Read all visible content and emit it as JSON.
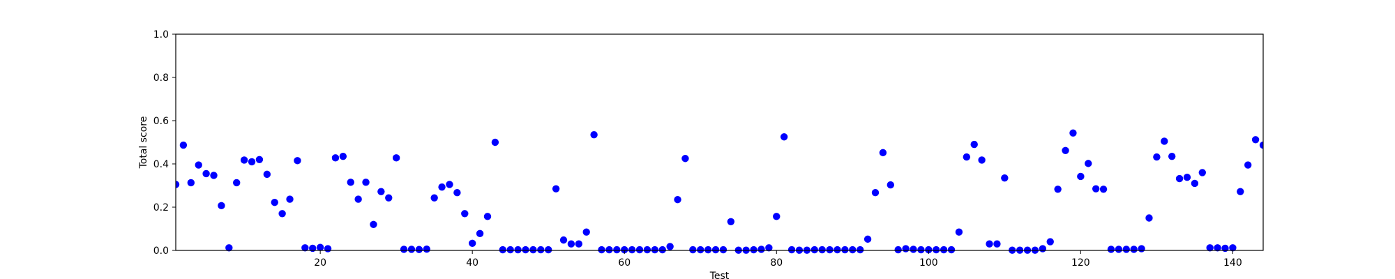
{
  "chart_data": {
    "type": "scatter",
    "title": "",
    "xlabel": "Test",
    "ylabel": "Total score",
    "xlim": [
      1,
      144
    ],
    "ylim": [
      0.0,
      1.0
    ],
    "grid": false,
    "legend": "none",
    "marker_color": "#0000ff",
    "x_ticks": [
      20,
      40,
      60,
      80,
      100,
      120,
      140
    ],
    "x_tick_labels": [
      "20",
      "40",
      "60",
      "80",
      "100",
      "120",
      "140"
    ],
    "y_ticks": [
      0.0,
      0.2,
      0.4,
      0.6,
      0.8,
      1.0
    ],
    "y_tick_labels": [
      "0.0",
      "0.2",
      "0.4",
      "0.6",
      "0.8",
      "1.0"
    ],
    "series": [
      {
        "x": [
          1,
          2,
          3,
          4,
          5,
          6,
          7,
          8,
          9,
          10,
          11,
          12,
          13,
          14,
          15,
          16,
          17,
          18,
          19,
          20,
          21,
          22,
          23,
          24,
          25,
          26,
          27,
          28,
          29,
          30,
          31,
          32,
          33,
          34,
          35,
          36,
          37,
          38,
          39,
          40,
          41,
          42,
          43,
          44,
          45,
          46,
          47,
          48,
          49,
          50,
          51,
          52,
          53,
          54,
          55,
          56,
          57,
          58,
          59,
          60,
          61,
          62,
          63,
          64,
          65,
          66,
          67,
          68,
          69,
          70,
          71,
          72,
          73,
          74,
          75,
          76,
          77,
          78,
          79,
          80,
          81,
          82,
          83,
          84,
          85,
          86,
          87,
          88,
          89,
          90,
          91,
          92,
          93,
          94,
          95,
          96,
          97,
          98,
          99,
          100,
          101,
          102,
          103,
          104,
          105,
          106,
          107,
          108,
          109,
          110,
          111,
          112,
          113,
          114,
          115,
          116,
          117,
          118,
          119,
          120,
          121,
          122,
          123,
          124,
          125,
          126,
          127,
          128,
          129,
          130,
          131,
          132,
          133,
          134,
          135,
          136,
          137,
          138,
          139,
          140,
          141,
          142,
          143,
          144
        ],
        "y": [
          0.305,
          0.487,
          0.313,
          0.395,
          0.355,
          0.347,
          0.207,
          0.012,
          0.313,
          0.418,
          0.41,
          0.42,
          0.352,
          0.222,
          0.17,
          0.237,
          0.415,
          0.012,
          0.01,
          0.014,
          0.008,
          0.428,
          0.435,
          0.315,
          0.237,
          0.315,
          0.12,
          0.272,
          0.243,
          0.428,
          0.005,
          0.005,
          0.004,
          0.006,
          0.243,
          0.293,
          0.305,
          0.267,
          0.17,
          0.033,
          0.078,
          0.157,
          0.5,
          0.003,
          0.003,
          0.003,
          0.003,
          0.003,
          0.003,
          0.003,
          0.285,
          0.048,
          0.03,
          0.03,
          0.085,
          0.535,
          0.003,
          0.003,
          0.003,
          0.003,
          0.003,
          0.003,
          0.003,
          0.003,
          0.003,
          0.018,
          0.235,
          0.425,
          0.003,
          0.003,
          0.003,
          0.003,
          0.003,
          0.133,
          0.001,
          0.001,
          0.003,
          0.005,
          0.012,
          0.157,
          0.525,
          0.003,
          0.001,
          0.001,
          0.003,
          0.003,
          0.003,
          0.003,
          0.003,
          0.003,
          0.003,
          0.052,
          0.267,
          0.452,
          0.303,
          0.003,
          0.008,
          0.005,
          0.003,
          0.003,
          0.003,
          0.003,
          0.003,
          0.085,
          0.432,
          0.49,
          0.418,
          0.03,
          0.03,
          0.335,
          0.001,
          0.001,
          0.001,
          0.001,
          0.008,
          0.04,
          0.283,
          0.462,
          0.543,
          0.342,
          0.402,
          0.285,
          0.283,
          0.005,
          0.005,
          0.005,
          0.005,
          0.008,
          0.15,
          0.432,
          0.505,
          0.435,
          0.332,
          0.338,
          0.31,
          0.36,
          0.012,
          0.012,
          0.01,
          0.012,
          0.272,
          0.395,
          0.512,
          0.487
        ]
      }
    ]
  }
}
